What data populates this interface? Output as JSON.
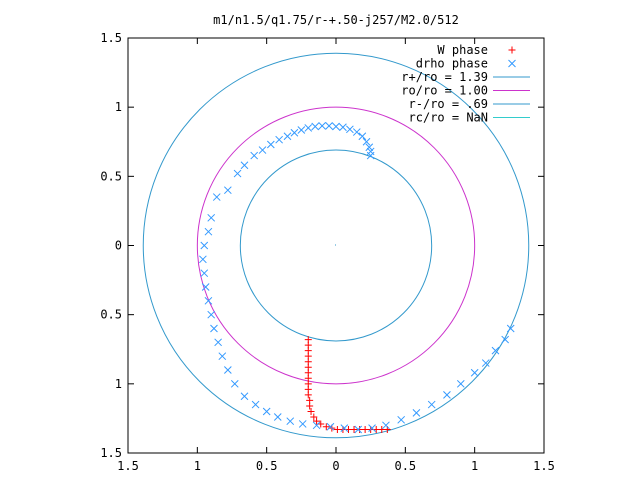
{
  "chart_data": {
    "type": "scatter",
    "title": "m1/n1.5/q1.75/r-+.50-j257/M2.0/512",
    "xlabel": "",
    "ylabel": "",
    "xlim": [
      -1.5,
      1.5
    ],
    "ylim": [
      -1.5,
      1.5
    ],
    "x_ticks": [
      -1.5,
      -1,
      -0.5,
      0,
      0.5,
      1,
      1.5
    ],
    "y_ticks": [
      -1.5,
      -1,
      -0.5,
      0,
      0.5,
      1,
      1.5
    ],
    "x_tick_labels": [
      "1.5",
      "1",
      "0.5",
      "0",
      "0.5",
      "1",
      "1.5"
    ],
    "y_tick_labels": [
      "1.5",
      "1",
      "0.5",
      "0",
      "0.5",
      "1",
      "1.5"
    ],
    "grid": false,
    "legend_position": "top-right",
    "series": [
      {
        "name": "W phase",
        "kind": "points",
        "marker": "plus",
        "color": "#ff0000",
        "points": [
          [
            -0.2,
            -0.68
          ],
          [
            -0.2,
            -0.72
          ],
          [
            -0.2,
            -0.76
          ],
          [
            -0.2,
            -0.8
          ],
          [
            -0.2,
            -0.84
          ],
          [
            -0.2,
            -0.88
          ],
          [
            -0.2,
            -0.92
          ],
          [
            -0.2,
            -0.96
          ],
          [
            -0.2,
            -1.0
          ],
          [
            -0.2,
            -1.04
          ],
          [
            -0.2,
            -1.08
          ],
          [
            -0.19,
            -1.12
          ],
          [
            -0.19,
            -1.16
          ],
          [
            -0.18,
            -1.2
          ],
          [
            -0.16,
            -1.24
          ],
          [
            -0.14,
            -1.27
          ],
          [
            -0.11,
            -1.29
          ],
          [
            -0.07,
            -1.31
          ],
          [
            -0.03,
            -1.32
          ],
          [
            0.01,
            -1.33
          ],
          [
            0.05,
            -1.33
          ],
          [
            0.09,
            -1.33
          ],
          [
            0.13,
            -1.33
          ],
          [
            0.17,
            -1.33
          ],
          [
            0.21,
            -1.33
          ],
          [
            0.25,
            -1.33
          ],
          [
            0.29,
            -1.33
          ],
          [
            0.33,
            -1.33
          ],
          [
            0.37,
            -1.33
          ]
        ]
      },
      {
        "name": "drho phase",
        "kind": "points",
        "marker": "cross",
        "color": "#3399ff",
        "points": [
          [
            0.25,
            0.65
          ],
          [
            0.25,
            0.68
          ],
          [
            0.24,
            0.71
          ],
          [
            0.22,
            0.75
          ],
          [
            0.19,
            0.79
          ],
          [
            0.15,
            0.82
          ],
          [
            0.1,
            0.84
          ],
          [
            0.05,
            0.855
          ],
          [
            0.0,
            0.86
          ],
          [
            -0.05,
            0.865
          ],
          [
            -0.1,
            0.865
          ],
          [
            -0.15,
            0.86
          ],
          [
            -0.2,
            0.85
          ],
          [
            -0.25,
            0.835
          ],
          [
            -0.3,
            0.815
          ],
          [
            -0.35,
            0.79
          ],
          [
            -0.41,
            0.765
          ],
          [
            -0.47,
            0.73
          ],
          [
            -0.53,
            0.69
          ],
          [
            -0.59,
            0.65
          ],
          [
            -0.66,
            0.58
          ],
          [
            -0.71,
            0.52
          ],
          [
            -0.78,
            0.4
          ],
          [
            -0.86,
            0.35
          ],
          [
            -0.9,
            0.2
          ],
          [
            -0.92,
            0.1
          ],
          [
            -0.95,
            0.0
          ],
          [
            -0.96,
            -0.1
          ],
          [
            -0.95,
            -0.2
          ],
          [
            -0.94,
            -0.3
          ],
          [
            -0.92,
            -0.4
          ],
          [
            -0.9,
            -0.5
          ],
          [
            -0.88,
            -0.6
          ],
          [
            -0.85,
            -0.7
          ],
          [
            -0.82,
            -0.8
          ],
          [
            -0.78,
            -0.9
          ],
          [
            -0.73,
            -1.0
          ],
          [
            -0.66,
            -1.09
          ],
          [
            -0.58,
            -1.15
          ],
          [
            -0.5,
            -1.2
          ],
          [
            -0.42,
            -1.24
          ],
          [
            -0.33,
            -1.27
          ],
          [
            -0.24,
            -1.29
          ],
          [
            -0.14,
            -1.3
          ],
          [
            -0.04,
            -1.31
          ],
          [
            0.06,
            -1.32
          ],
          [
            0.16,
            -1.33
          ],
          [
            0.26,
            -1.32
          ],
          [
            0.36,
            -1.3
          ],
          [
            0.47,
            -1.26
          ],
          [
            0.58,
            -1.21
          ],
          [
            0.69,
            -1.15
          ],
          [
            0.8,
            -1.08
          ],
          [
            0.9,
            -1.0
          ],
          [
            1.0,
            -0.92
          ],
          [
            1.08,
            -0.85
          ],
          [
            1.15,
            -0.76
          ],
          [
            1.22,
            -0.68
          ],
          [
            1.26,
            -0.6
          ]
        ]
      },
      {
        "name": "r+/ro = 1.39",
        "kind": "circle",
        "radius": 1.39,
        "color": "#3399cc"
      },
      {
        "name": "ro/ro = 1.00",
        "kind": "circle",
        "radius": 1.0,
        "color": "#cc33cc"
      },
      {
        "name": "r-/ro = .69",
        "kind": "circle",
        "radius": 0.69,
        "color": "#3399cc"
      },
      {
        "name": "rc/ro = NaN",
        "kind": "circle",
        "radius": null,
        "color": "#33cccc"
      }
    ]
  }
}
